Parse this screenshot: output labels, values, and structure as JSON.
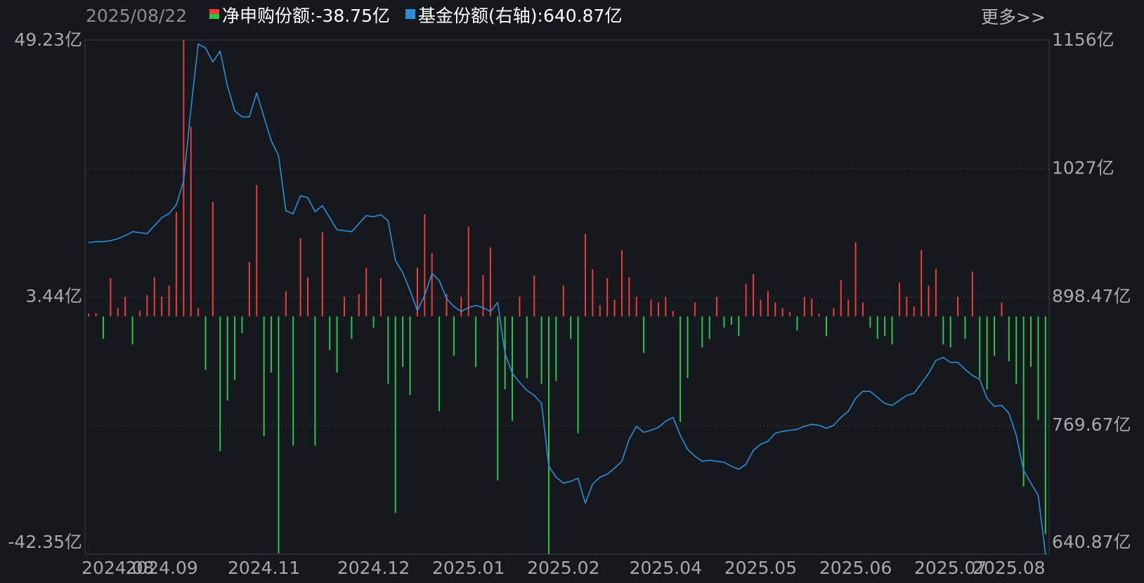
{
  "chart_data": {
    "type": "bar",
    "date": "2025/08/22",
    "more": "更多>>",
    "categories": [
      null,
      null,
      null,
      null,
      "2024.08",
      null,
      null,
      null,
      null,
      null,
      "2024.09",
      null,
      null,
      null,
      null,
      null,
      null,
      null,
      null,
      null,
      null,
      null,
      null,
      null,
      "2024.11",
      null,
      null,
      null,
      null,
      null,
      null,
      null,
      null,
      null,
      null,
      null,
      null,
      null,
      null,
      "2024.12",
      null,
      null,
      null,
      null,
      null,
      null,
      null,
      null,
      null,
      null,
      null,
      null,
      "2025.01",
      null,
      null,
      null,
      null,
      null,
      null,
      null,
      null,
      null,
      null,
      null,
      null,
      "2025.02",
      null,
      null,
      null,
      null,
      null,
      null,
      null,
      null,
      null,
      null,
      null,
      null,
      null,
      "2025.04",
      null,
      null,
      null,
      null,
      null,
      null,
      null,
      null,
      null,
      null,
      null,
      null,
      "2025.05",
      null,
      null,
      null,
      null,
      null,
      null,
      null,
      null,
      null,
      null,
      null,
      null,
      "2025.06",
      null,
      null,
      null,
      null,
      null,
      null,
      null,
      null,
      null,
      null,
      null,
      null,
      "2025.07",
      null,
      null,
      null,
      null,
      null,
      null,
      null,
      "2025.08",
      null,
      null,
      null,
      null,
      null
    ],
    "series": [
      {
        "name": "净申购份额",
        "readout": ":-38.75亿",
        "axis": "y",
        "up_color": "#ee3b3b",
        "down_color": "#2ec14d",
        "values": [
          0.5,
          0.6,
          -4,
          6.8,
          1.5,
          3.5,
          -5,
          1,
          3.8,
          7,
          3.5,
          5.5,
          18.6,
          49.2,
          33.8,
          1.5,
          -9.5,
          20.4,
          -24,
          -15,
          -11.3,
          -3,
          9.7,
          23.4,
          -21.3,
          -10,
          -42.2,
          4.5,
          -23,
          13.9,
          7,
          -23,
          15,
          -6,
          -10,
          3.5,
          -4,
          4,
          8.7,
          -2,
          6.8,
          -12,
          -35,
          -9,
          -14,
          8.7,
          18.2,
          11.3,
          -16.9,
          4,
          -7,
          3.5,
          16,
          -9,
          7.4,
          12.3,
          -29.2,
          -13,
          -18.6,
          3.5,
          -11,
          7.3,
          -12,
          -42.3,
          -11.5,
          5.5,
          -4,
          -20.8,
          14.7,
          8.4,
          2,
          6.8,
          3,
          11.8,
          7,
          3.5,
          -6.5,
          3,
          2.5,
          3.5,
          1,
          -18.8,
          -11,
          2.5,
          -5.5,
          -4,
          3.5,
          -2,
          -1.5,
          -3.5,
          5.8,
          7.5,
          3,
          4.5,
          2.5,
          1.5,
          0.8,
          -2.5,
          3.5,
          3.2,
          0.5,
          -3.5,
          1.5,
          6.5,
          3,
          13.2,
          2.5,
          -2,
          -4,
          -3.5,
          -5,
          6,
          3.5,
          1.8,
          11.8,
          5.5,
          8.5,
          -5,
          -5.5,
          3.5,
          -4,
          8,
          -11,
          -13,
          -7,
          2.5,
          -8,
          -12,
          -30.3,
          -9,
          -18.4,
          -38.75
        ]
      },
      {
        "name": "基金份额(右轴)",
        "readout": ":640.87亿",
        "type": "line",
        "axis": "y2",
        "color": "#2a8fd8",
        "values": [
          953,
          954,
          954,
          955,
          957,
          960,
          964,
          963,
          962,
          970,
          978,
          982,
          991,
          1015,
          1087,
          1152,
          1148,
          1134,
          1145,
          1110,
          1085,
          1079,
          1079,
          1103,
          1079,
          1055,
          1040,
          985,
          982,
          1000,
          998,
          984,
          990,
          978,
          966,
          965,
          964,
          972,
          980,
          979,
          981,
          975,
          935,
          923,
          905,
          885,
          900,
          922,
          915,
          897,
          889,
          884,
          888,
          890,
          888,
          884,
          893,
          842,
          822,
          813,
          805,
          800,
          792,
          729,
          718,
          712,
          714,
          717,
          692,
          711,
          718,
          721,
          727,
          734,
          756,
          769,
          763,
          765,
          768,
          774,
          778,
          760,
          746,
          739,
          734,
          735,
          734,
          733,
          729,
          726,
          731,
          745,
          751,
          754,
          762,
          764,
          765,
          766,
          769,
          771,
          770,
          767,
          770,
          778,
          784,
          797,
          804,
          804,
          798,
          792,
          790,
          795,
          800,
          802,
          812,
          822,
          835,
          838,
          833,
          833,
          826,
          820,
          816,
          797,
          789,
          790,
          782,
          760,
          725,
          712,
          700,
          640.87
        ]
      }
    ],
    "ylim": [
      -42.35,
      49.23
    ],
    "yticks": [
      {
        "value": -42.35,
        "label": "-42.35亿"
      },
      {
        "value": 3.44,
        "label": "3.44亿"
      },
      {
        "value": 49.23,
        "label": "49.23亿"
      }
    ],
    "y2lim": [
      640.87,
      1156
    ],
    "y2ticks": [
      {
        "value": 640.87,
        "label": "640.87亿"
      },
      {
        "value": 769.67,
        "label": "769.67亿"
      },
      {
        "value": 898.47,
        "label": "898.47亿"
      },
      {
        "value": 1027,
        "label": "1027亿"
      },
      {
        "value": 1156,
        "label": "1156亿"
      }
    ],
    "grid": true
  }
}
